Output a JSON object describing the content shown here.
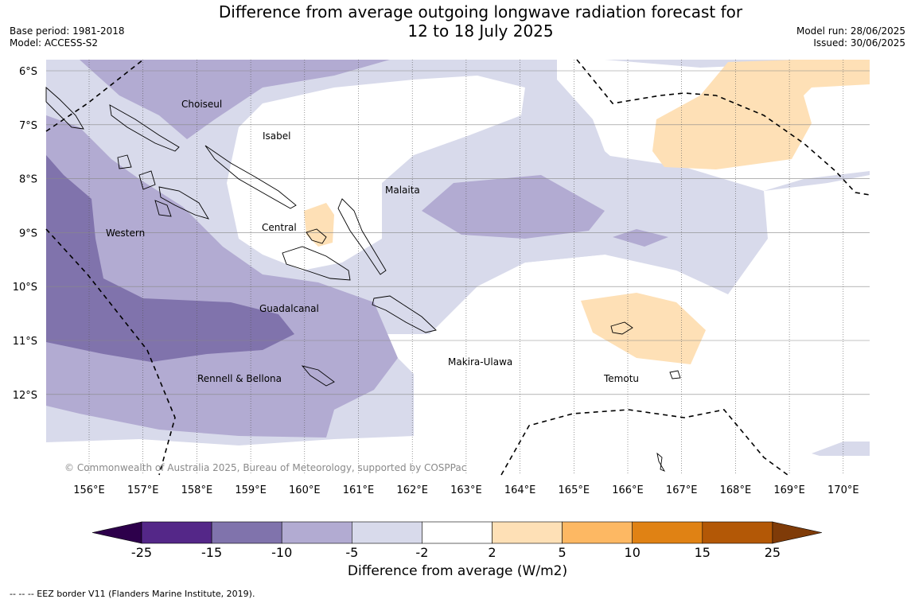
{
  "header": {
    "title_line1": "Difference from average outgoing longwave radiation forecast for",
    "title_line2": "12 to 18 July 2025",
    "base_period": "Base period: 1981-2018",
    "model": "Model: ACCESS-S2",
    "model_run": "Model run: 28/06/2025",
    "issued": "Issued: 30/06/2025"
  },
  "map": {
    "lat_labels": [
      "6°S",
      "7°S",
      "8°S",
      "9°S",
      "10°S",
      "11°S",
      "12°S"
    ],
    "lon_labels": [
      "156°E",
      "157°E",
      "158°E",
      "159°E",
      "160°E",
      "161°E",
      "162°E",
      "163°E",
      "164°E",
      "165°E",
      "166°E",
      "167°E",
      "168°E",
      "169°E",
      "170°E"
    ],
    "regions": [
      "Choiseul",
      "Isabel",
      "Malaita",
      "Western",
      "Central",
      "Guadalcanal",
      "Rennell & Bellona",
      "Makira-Ulawa",
      "Temotu"
    ],
    "copyright": "© Commonwealth of Australia 2025, Bureau of Meteorology, supported by COSPPac"
  },
  "colorbar": {
    "ticks": [
      "-25",
      "-15",
      "-10",
      "-5",
      "-2",
      "2",
      "5",
      "10",
      "15",
      "25"
    ],
    "colors": [
      "#2d004b",
      "#542788",
      "#8073ac",
      "#b2abd2",
      "#d8daeb",
      "#ffffff",
      "#fee0b6",
      "#fdb863",
      "#e08214",
      "#b35806",
      "#7f3b08"
    ],
    "label": "Difference from average (W/m2)"
  },
  "footnote": "--  --  -- EEZ border V11 (Flanders Marine Institute, 2019)."
}
